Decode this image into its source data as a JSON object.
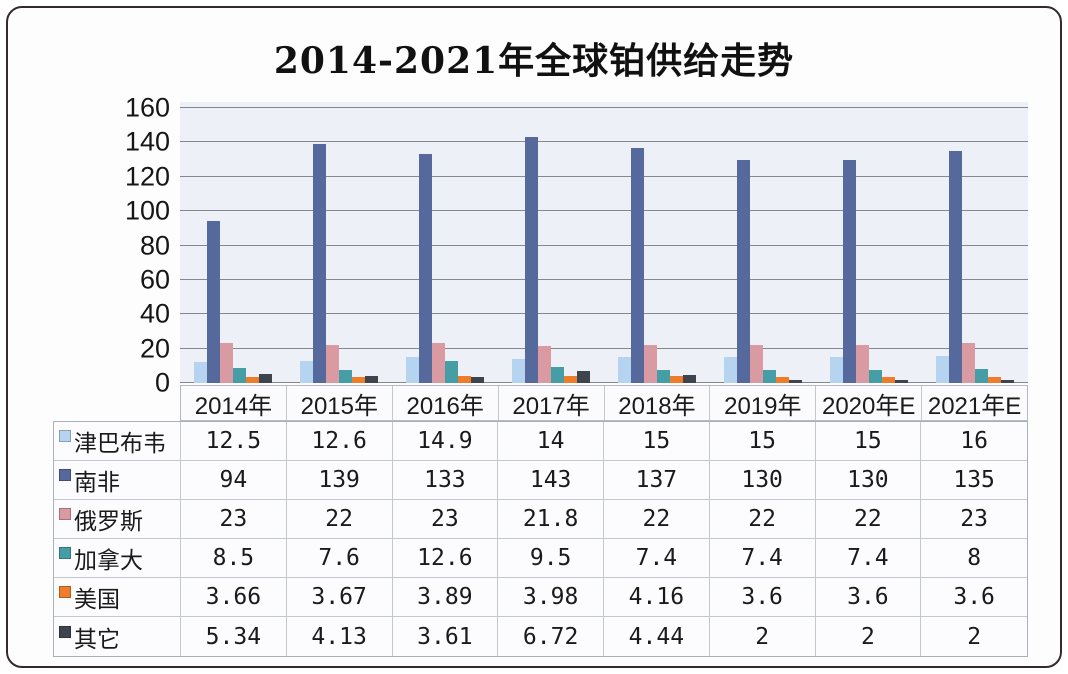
{
  "title": "2014-2021年全球铂供给走势",
  "chart_data": {
    "type": "bar",
    "title": "2014-2021年全球铂供给走势",
    "categories": [
      "2014年",
      "2015年",
      "2016年",
      "2017年",
      "2018年",
      "2019年",
      "2020年E",
      "2021年E"
    ],
    "series": [
      {
        "name": "津巴布韦",
        "color": "#b6d3f0",
        "values": [
          12.5,
          12.6,
          14.9,
          14,
          15,
          15,
          15,
          16
        ]
      },
      {
        "name": "南非",
        "color": "#56699c",
        "values": [
          94,
          139,
          133,
          143,
          137,
          130,
          130,
          135
        ]
      },
      {
        "name": "俄罗斯",
        "color": "#d99ba1",
        "values": [
          23,
          22,
          23,
          21.8,
          22,
          22,
          22,
          23
        ]
      },
      {
        "name": "加拿大",
        "color": "#459ea5",
        "values": [
          8.5,
          7.6,
          12.6,
          9.5,
          7.4,
          7.4,
          7.4,
          8
        ]
      },
      {
        "name": "美国",
        "color": "#ed7d2b",
        "values": [
          3.66,
          3.67,
          3.89,
          3.98,
          4.16,
          3.6,
          3.6,
          3.6
        ]
      },
      {
        "name": "其它",
        "color": "#3e444d",
        "values": [
          5.34,
          4.13,
          3.61,
          6.72,
          4.44,
          2,
          2,
          2
        ]
      }
    ],
    "ylim": [
      0,
      160
    ],
    "yticks": [
      0,
      20,
      40,
      60,
      80,
      100,
      120,
      140,
      160
    ],
    "grid": true,
    "legend_position": "table-left-column",
    "xlabel": "",
    "ylabel": ""
  },
  "colors": {
    "plot_background": "#eef0f8",
    "grid_line": "#84878c",
    "frame_border": "#342a2d",
    "table_border": "#b4bac4"
  }
}
